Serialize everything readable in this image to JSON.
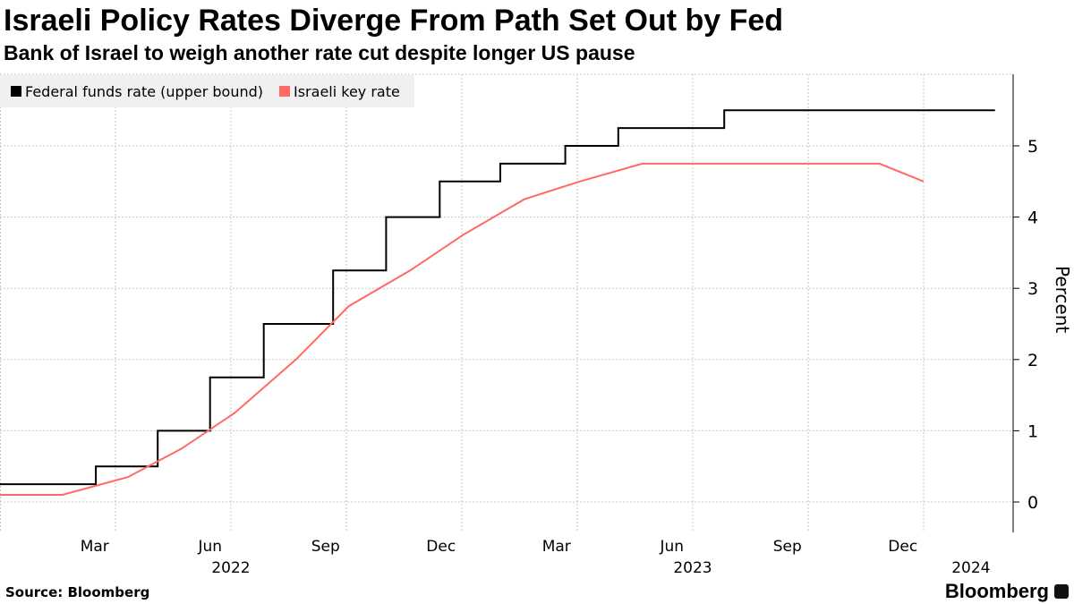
{
  "title": "Israeli Policy Rates Diverge From Path Set Out by Fed",
  "subtitle": "Bank of Israel to weigh another rate cut despite longer US pause",
  "source": "Source: Bloomberg",
  "brand": "Bloomberg",
  "chart_data": {
    "type": "line",
    "ylabel": "Percent",
    "ylim": [
      -0.4,
      6.0
    ],
    "xlim": [
      "2022-01-01",
      "2024-03-15"
    ],
    "yticks": [
      "0",
      "1",
      "2",
      "3",
      "4",
      "5"
    ],
    "month_ticks": [
      {
        "label": "Mar",
        "date": "2022-03-15"
      },
      {
        "label": "Jun",
        "date": "2022-06-15"
      },
      {
        "label": "Sep",
        "date": "2022-09-15"
      },
      {
        "label": "Dec",
        "date": "2022-12-15"
      },
      {
        "label": "Mar",
        "date": "2023-03-15"
      },
      {
        "label": "Jun",
        "date": "2023-06-15"
      },
      {
        "label": "Sep",
        "date": "2023-09-15"
      },
      {
        "label": "Dec",
        "date": "2023-12-15"
      }
    ],
    "year_ticks": [
      {
        "label": "2022",
        "date": "2022-07-01"
      },
      {
        "label": "2023",
        "date": "2023-07-01"
      },
      {
        "label": "2024",
        "date": "2024-02-08"
      }
    ],
    "legend_position": "top-left",
    "series": [
      {
        "name": "Federal funds rate (upper bound)",
        "color": "#000000",
        "step": true,
        "points": [
          [
            "2022-01-01",
            0.25
          ],
          [
            "2022-03-16",
            0.5
          ],
          [
            "2022-05-04",
            1.0
          ],
          [
            "2022-06-15",
            1.75
          ],
          [
            "2022-07-27",
            2.5
          ],
          [
            "2022-09-21",
            3.25
          ],
          [
            "2022-11-02",
            4.0
          ],
          [
            "2022-12-14",
            4.5
          ],
          [
            "2023-02-01",
            4.75
          ],
          [
            "2023-03-22",
            5.0
          ],
          [
            "2023-05-03",
            5.25
          ],
          [
            "2023-07-26",
            5.5
          ],
          [
            "2024-02-27",
            5.5
          ]
        ]
      },
      {
        "name": "Israeli key rate",
        "color": "#ff6a67",
        "step": false,
        "points": [
          [
            "2022-01-01",
            0.1
          ],
          [
            "2022-02-20",
            0.1
          ],
          [
            "2022-04-11",
            0.35
          ],
          [
            "2022-05-23",
            0.75
          ],
          [
            "2022-07-04",
            1.25
          ],
          [
            "2022-08-22",
            2.0
          ],
          [
            "2022-10-03",
            2.75
          ],
          [
            "2022-11-21",
            3.25
          ],
          [
            "2023-01-02",
            3.75
          ],
          [
            "2023-02-20",
            4.25
          ],
          [
            "2023-04-03",
            4.5
          ],
          [
            "2023-05-22",
            4.75
          ],
          [
            "2023-11-27",
            4.75
          ],
          [
            "2024-01-01",
            4.5
          ]
        ]
      }
    ]
  }
}
